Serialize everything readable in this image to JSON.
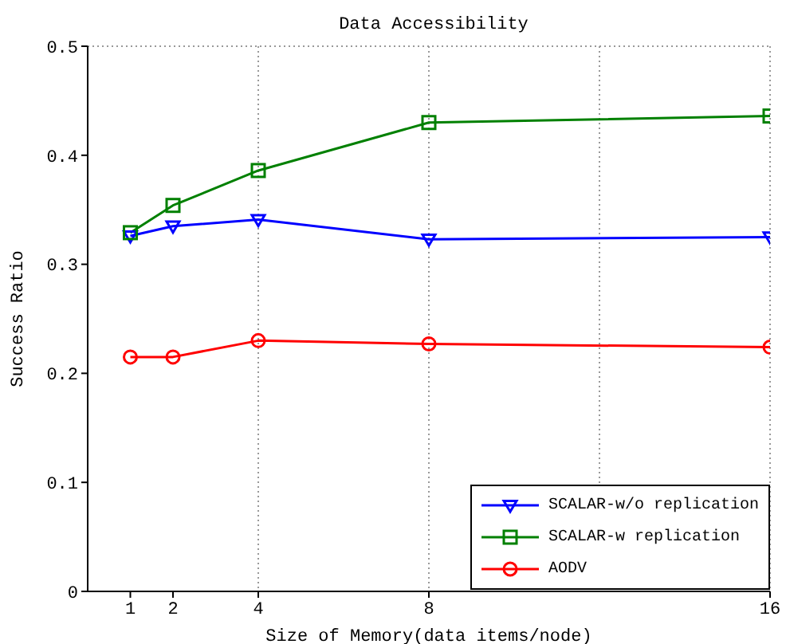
{
  "chart_data": {
    "type": "line",
    "title": "Data Accessibility",
    "xlabel": "Size of Memory(data items/node)",
    "ylabel": "Success Ratio",
    "x": [
      1,
      2,
      4,
      8,
      16
    ],
    "xlim": [
      0,
      16
    ],
    "xticks": [
      1,
      2,
      4,
      8,
      16
    ],
    "ylim": [
      0,
      0.5
    ],
    "yticks": [
      0,
      0.1,
      0.2,
      0.3,
      0.4,
      0.5
    ],
    "grid": true,
    "legend": "bottom right",
    "line_style": "solid",
    "series": [
      {
        "name": "SCALAR-w/o replication",
        "color": "#0000ff",
        "marker": "triangle",
        "values": [
          0.326,
          0.335,
          0.341,
          0.323,
          0.325
        ]
      },
      {
        "name": "SCALAR-w replication",
        "color": "#008000",
        "marker": "square",
        "values": [
          0.329,
          0.354,
          0.386,
          0.43,
          0.436
        ]
      },
      {
        "name": "AODV",
        "color": "#ff0000",
        "marker": "circle",
        "values": [
          0.215,
          0.215,
          0.23,
          0.227,
          0.224
        ]
      }
    ]
  }
}
